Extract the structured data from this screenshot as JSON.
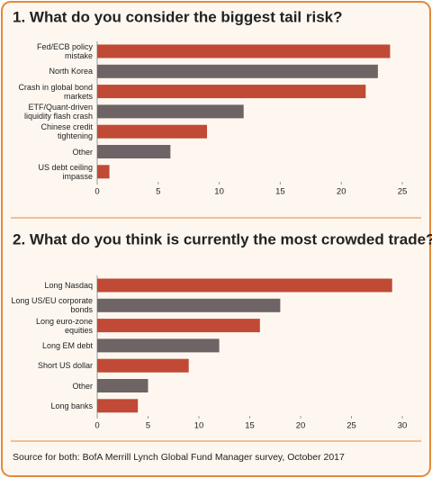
{
  "chart_data": [
    {
      "type": "hbar",
      "title": "1. What do you consider the biggest tail risk?",
      "categories": [
        "Fed/ECB policy mistake",
        "North Korea",
        "Crash in global bond markets",
        "ETF/Quant-driven liquidity flash crash",
        "Chinese credit tightening",
        "Other",
        "US debt ceiling impasse"
      ],
      "values": [
        24,
        23,
        22,
        12,
        9,
        6,
        1
      ],
      "colors": [
        "#c04a35",
        "#6e6466",
        "#c04a35",
        "#6e6466",
        "#c04a35",
        "#6e6466",
        "#c04a35"
      ],
      "xlim": [
        0,
        25
      ],
      "xticks": [
        0,
        5,
        10,
        15,
        20,
        25
      ]
    },
    {
      "type": "hbar",
      "title": "2. What do you think is currently the most crowded trade?",
      "categories": [
        "Long Nasdaq",
        "Long US/EU corporate bonds",
        "Long euro-zone equities",
        "Long EM debt",
        "Short US dollar",
        "Other",
        "Long banks"
      ],
      "values": [
        29,
        18,
        16,
        12,
        9,
        5,
        4
      ],
      "colors": [
        "#c04a35",
        "#6e6466",
        "#c04a35",
        "#6e6466",
        "#c04a35",
        "#6e6466",
        "#c04a35"
      ],
      "xlim": [
        0,
        30
      ],
      "xticks": [
        0,
        5,
        10,
        15,
        20,
        25,
        30
      ]
    }
  ],
  "source": "Source for both: BofA Merrill Lynch Global Fund Manager survey, October 2017"
}
